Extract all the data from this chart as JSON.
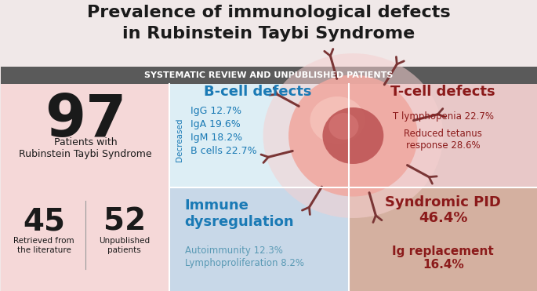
{
  "title_line1": "Prevalence of immunological defects",
  "title_line2": "in Rubinstein Taybi Syndrome",
  "subtitle": "SYSTEMATIC REVIEW AND UNPUBLISHED PATIENTS",
  "title_bg": "#f0e8e8",
  "subtitle_bg": "#5a5a5a",
  "subtitle_color": "#ffffff",
  "left_panel_bg": "#f5d8d8",
  "bcell_panel_bg": "#ddeef5",
  "tcell_panel_bg": "#e8c8c8",
  "immune_panel_bg": "#c8d8e8",
  "syndromic_panel_bg": "#d4b0a0",
  "big_number_97": "97",
  "label_97": "Patients with\nRubinstein Taybi Syndrome",
  "big_number_45": "45",
  "label_45": "Retrieved from\nthe literature",
  "big_number_52": "52",
  "label_52": "Unpublished\npatients",
  "bcell_title": "B-cell defects",
  "bcell_title_color": "#1a7ab5",
  "bcell_items": [
    "IgG 12.7%",
    "IgA 19.6%",
    "IgM 18.2%",
    "B cells 22.7%"
  ],
  "bcell_item_color": "#1a7ab5",
  "bcell_decreased_label": "Decreased",
  "bcell_decreased_color": "#1a7ab5",
  "tcell_title": "T-cell defects",
  "tcell_title_color": "#8b1a1a",
  "tcell_items": [
    "T lymphopenia 22.7%",
    "Reduced tetanus\nresponse 28.6%"
  ],
  "tcell_item_color": "#8b1a1a",
  "immune_title": "Immune\ndysregulation",
  "immune_title_color": "#1a7ab5",
  "immune_items": [
    "Autoimmunity 12.3%",
    "Lymphoproliferation 8.2%"
  ],
  "immune_item_color": "#5a9ab5",
  "syndromic_title": "Syndromic PID\n46.4%",
  "syndromic_title_color": "#8b1a1a",
  "ig_title": "Ig replacement\n16.4%",
  "ig_title_color": "#8b1a1a",
  "numbers_color": "#1a1a1a"
}
